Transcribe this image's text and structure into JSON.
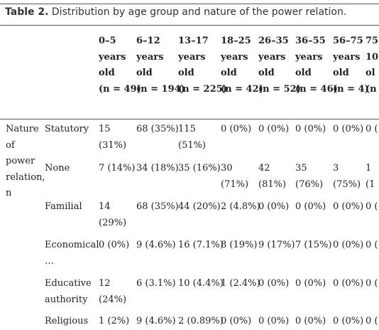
{
  "table": {
    "caption_label": "Table 2.",
    "caption_text": " Distribution by age group and nature of the power relation.",
    "columns": [
      {
        "lines": [
          "0–5",
          "years",
          "old",
          "(n = 49)"
        ]
      },
      {
        "lines": [
          "6–12",
          "years",
          "old",
          "(n = 194)"
        ]
      },
      {
        "lines": [
          "13–17",
          "years",
          "old",
          "(n = 225)"
        ]
      },
      {
        "lines": [
          "18–25",
          "years",
          "old",
          "(n = 42)"
        ]
      },
      {
        "lines": [
          "26–35",
          "years",
          "old",
          "(n = 52)"
        ]
      },
      {
        "lines": [
          "36–55",
          "years",
          "old",
          "(n = 46)"
        ]
      },
      {
        "lines": [
          "56–75",
          "years",
          "old",
          "(n = 4)"
        ]
      },
      {
        "lines": [
          "75–",
          "10",
          "ol",
          "(n"
        ]
      }
    ],
    "group_label_lines": [
      "Nature",
      "of",
      "power",
      "relation,",
      "n"
    ],
    "rows": [
      {
        "label": [
          "Statutory"
        ],
        "cells": [
          [
            "15",
            "(31%)"
          ],
          [
            "68 (35%)"
          ],
          [
            "115",
            "(51%)"
          ],
          [
            "0 (0%)"
          ],
          [
            "0 (0%)"
          ],
          [
            "0 (0%)"
          ],
          [
            "0 (0%)"
          ],
          [
            "0 ("
          ]
        ]
      },
      {
        "label": [
          "None"
        ],
        "cells": [
          [
            "7 (14%)"
          ],
          [
            "34 (18%)"
          ],
          [
            "35 (16%)"
          ],
          [
            "30",
            "(71%)"
          ],
          [
            "42",
            "(81%)"
          ],
          [
            "35",
            "(76%)"
          ],
          [
            "3",
            "(75%)"
          ],
          [
            "1",
            "(1"
          ]
        ]
      },
      {
        "label": [
          "Familial"
        ],
        "cells": [
          [
            "14",
            "(29%)"
          ],
          [
            "68 (35%)"
          ],
          [
            "44 (20%)"
          ],
          [
            "2 (4.8%)"
          ],
          [
            "0 (0%)"
          ],
          [
            "0 (0%)"
          ],
          [
            "0 (0%)"
          ],
          [
            "0 ("
          ]
        ]
      },
      {
        "label": [
          "Economical",
          "…"
        ],
        "cells": [
          [
            "0 (0%)"
          ],
          [
            "9 (4.6%)"
          ],
          [
            "16 (7.1%)"
          ],
          [
            "8 (19%)"
          ],
          [
            "9 (17%)"
          ],
          [
            "7 (15%)"
          ],
          [
            "0 (0%)"
          ],
          [
            "0 ("
          ]
        ]
      },
      {
        "label": [
          "Educative",
          "authority"
        ],
        "cells": [
          [
            "12",
            "(24%)"
          ],
          [
            "6 (3.1%)"
          ],
          [
            "10 (4.4%)"
          ],
          [
            "1 (2.4%)"
          ],
          [
            "0 (0%)"
          ],
          [
            "0 (0%)"
          ],
          [
            "0 (0%)"
          ],
          [
            "0 ("
          ]
        ]
      },
      {
        "label": [
          "Religious"
        ],
        "cells": [
          [
            "1 (2%)"
          ],
          [
            "9 (4.6%)"
          ],
          [
            "2 (0.89%)"
          ],
          [
            "0 (0%)"
          ],
          [
            "0 (0%)"
          ],
          [
            "0 (0%)"
          ],
          [
            "0 (0%)"
          ],
          [
            "0 ("
          ]
        ]
      }
    ]
  }
}
